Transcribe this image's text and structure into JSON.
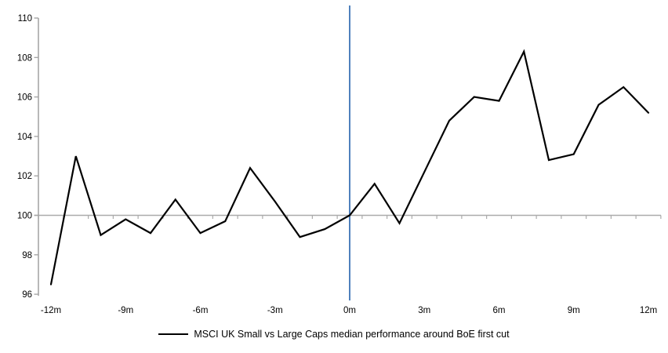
{
  "chart_data": {
    "type": "line",
    "x": [
      -12,
      -11,
      -10,
      -9,
      -8,
      -7,
      -6,
      -5,
      -4,
      -3,
      -2,
      -1,
      0,
      1,
      2,
      3,
      4,
      5,
      6,
      7,
      8,
      9,
      10,
      11,
      12
    ],
    "series": [
      {
        "name": "MSCI UK Small vs Large Caps median performance around BoE first cut",
        "color": "#000000",
        "values": [
          96.5,
          103.0,
          99.0,
          99.8,
          99.1,
          100.8,
          99.1,
          99.7,
          102.4,
          100.7,
          98.9,
          99.3,
          100.0,
          101.6,
          99.6,
          102.2,
          104.8,
          106.0,
          105.8,
          108.3,
          102.8,
          103.1,
          105.6,
          106.5,
          105.2
        ]
      }
    ],
    "title": "",
    "xlabel": "",
    "ylabel": "",
    "xlim": [
      -12,
      12
    ],
    "ylim": [
      96,
      110
    ],
    "y_ticks": [
      96,
      98,
      100,
      102,
      104,
      106,
      108,
      110
    ],
    "x_tick_months": [
      -12,
      -9,
      -6,
      -3,
      0,
      3,
      6,
      9,
      12
    ],
    "x_tick_labels": [
      "-12m",
      "-9m",
      "-6m",
      "-3m",
      "0m",
      "3m",
      "6m",
      "9m",
      "12m"
    ],
    "baseline_value": 100,
    "event_line_x": 0,
    "grid": "baseline-only",
    "legend_position": "bottom-center",
    "colors": {
      "series": "#000000",
      "event_line": "#4F81BD",
      "axis": "#A6A6A6",
      "baseline": "#ABABAB"
    }
  },
  "legend": {
    "label": "MSCI UK Small vs Large Caps median performance around BoE first cut"
  }
}
